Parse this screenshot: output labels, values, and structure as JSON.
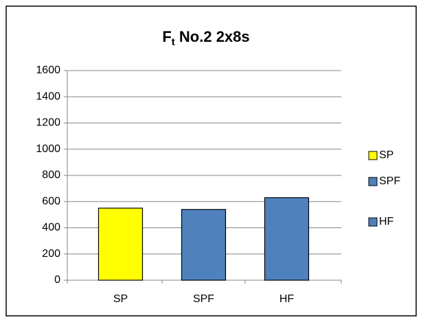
{
  "chart_data": {
    "type": "bar",
    "title": [
      "F",
      "t",
      " No.2 2x8s"
    ],
    "categories": [
      "SP",
      "SPF",
      "HF"
    ],
    "values": [
      550,
      540,
      630
    ],
    "colors": [
      "#ffff00",
      "#4f81bd",
      "#4f81bd"
    ],
    "ylim": [
      0,
      1600
    ],
    "yticks": [
      0,
      200,
      400,
      600,
      800,
      1000,
      1200,
      1400,
      1600
    ],
    "grid": true,
    "legend": "right"
  }
}
